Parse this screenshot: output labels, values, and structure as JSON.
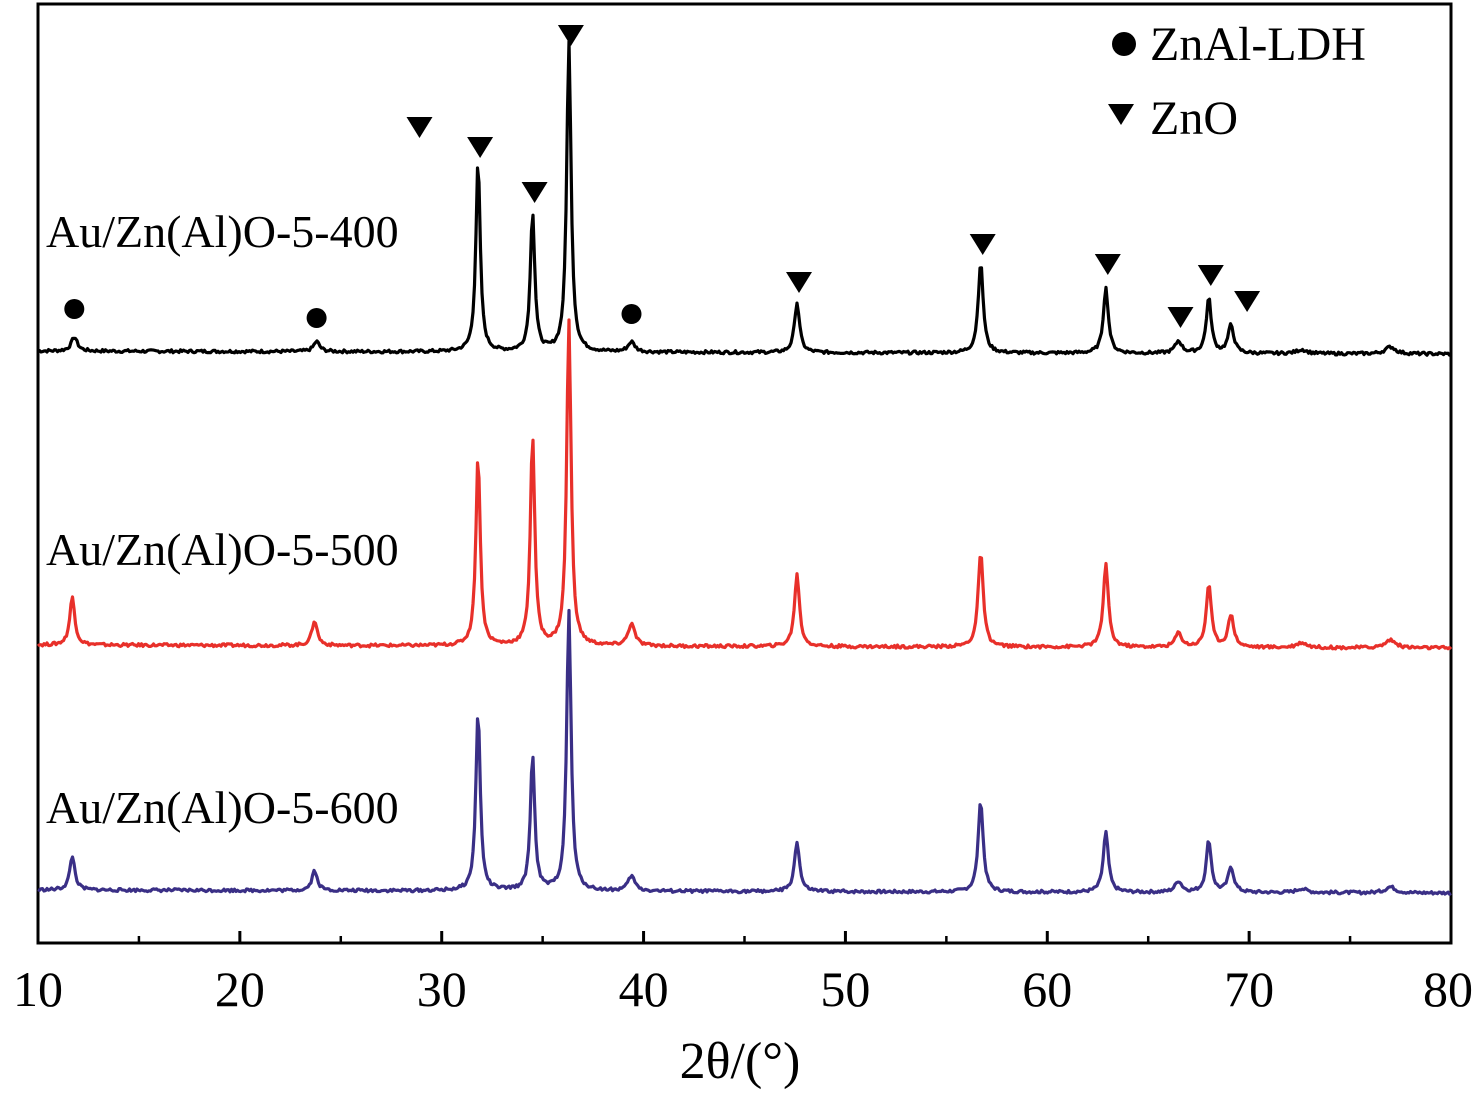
{
  "chart_data": {
    "type": "line",
    "title": "",
    "xlabel": "2θ/(°)",
    "ylabel": "",
    "xlim": [
      10,
      80
    ],
    "xticks": [
      10,
      20,
      30,
      40,
      50,
      60,
      70,
      80
    ],
    "grid": false,
    "legend": {
      "position": "top-right",
      "entries": [
        {
          "symbol": "circle",
          "label": "ZnAl-LDH"
        },
        {
          "symbol": "triangle-down",
          "label": "ZnO"
        }
      ]
    },
    "series": [
      {
        "name": "Au/Zn(Al)O-5-400",
        "color": "#000000",
        "peaks": [
          {
            "x": 11.8,
            "h": 14,
            "w": 0.18
          },
          {
            "x": 23.8,
            "h": 10,
            "w": 0.18
          },
          {
            "x": 31.8,
            "h": 190,
            "w": 0.13
          },
          {
            "x": 34.5,
            "h": 140,
            "w": 0.13
          },
          {
            "x": 36.3,
            "h": 310,
            "w": 0.13
          },
          {
            "x": 39.4,
            "h": 10,
            "w": 0.2
          },
          {
            "x": 47.6,
            "h": 50,
            "w": 0.15
          },
          {
            "x": 56.7,
            "h": 90,
            "w": 0.15
          },
          {
            "x": 62.9,
            "h": 65,
            "w": 0.15
          },
          {
            "x": 66.5,
            "h": 12,
            "w": 0.2
          },
          {
            "x": 68.0,
            "h": 55,
            "w": 0.15
          },
          {
            "x": 69.1,
            "h": 28,
            "w": 0.17
          },
          {
            "x": 72.6,
            "h": 4,
            "w": 0.3
          },
          {
            "x": 77.0,
            "h": 7,
            "w": 0.3
          }
        ]
      },
      {
        "name": "Au/Zn(Al)O-5-500",
        "color": "#e8302a",
        "peaks": [
          {
            "x": 11.7,
            "h": 48,
            "w": 0.15
          },
          {
            "x": 23.7,
            "h": 25,
            "w": 0.16
          },
          {
            "x": 31.8,
            "h": 190,
            "w": 0.13
          },
          {
            "x": 34.5,
            "h": 210,
            "w": 0.13
          },
          {
            "x": 36.3,
            "h": 325,
            "w": 0.13
          },
          {
            "x": 39.4,
            "h": 22,
            "w": 0.2
          },
          {
            "x": 47.6,
            "h": 72,
            "w": 0.15
          },
          {
            "x": 56.7,
            "h": 95,
            "w": 0.15
          },
          {
            "x": 62.9,
            "h": 83,
            "w": 0.15
          },
          {
            "x": 66.5,
            "h": 14,
            "w": 0.2
          },
          {
            "x": 68.0,
            "h": 63,
            "w": 0.15
          },
          {
            "x": 69.1,
            "h": 32,
            "w": 0.17
          },
          {
            "x": 72.6,
            "h": 5,
            "w": 0.3
          },
          {
            "x": 77.0,
            "h": 8,
            "w": 0.3
          }
        ]
      },
      {
        "name": "Au/Zn(Al)O-5-600",
        "color": "#3a2f86",
        "peaks": [
          {
            "x": 11.7,
            "h": 34,
            "w": 0.15
          },
          {
            "x": 23.7,
            "h": 20,
            "w": 0.16
          },
          {
            "x": 31.8,
            "h": 180,
            "w": 0.13
          },
          {
            "x": 34.5,
            "h": 135,
            "w": 0.13
          },
          {
            "x": 36.3,
            "h": 280,
            "w": 0.13
          },
          {
            "x": 39.4,
            "h": 15,
            "w": 0.2
          },
          {
            "x": 47.6,
            "h": 50,
            "w": 0.15
          },
          {
            "x": 56.7,
            "h": 90,
            "w": 0.15
          },
          {
            "x": 62.9,
            "h": 60,
            "w": 0.15
          },
          {
            "x": 66.5,
            "h": 11,
            "w": 0.2
          },
          {
            "x": 68.0,
            "h": 52,
            "w": 0.15
          },
          {
            "x": 69.1,
            "h": 25,
            "w": 0.17
          },
          {
            "x": 72.6,
            "h": 4,
            "w": 0.3
          },
          {
            "x": 77.0,
            "h": 6,
            "w": 0.3
          }
        ]
      }
    ],
    "markers": [
      {
        "symbol": "circle",
        "x": 11.8
      },
      {
        "symbol": "circle",
        "x": 23.8
      },
      {
        "symbol": "circle",
        "x": 39.4
      },
      {
        "symbol": "triangle-down",
        "x": 28.9
      },
      {
        "symbol": "triangle-down",
        "x": 31.9
      },
      {
        "symbol": "triangle-down",
        "x": 34.6
      },
      {
        "symbol": "triangle-down",
        "x": 36.4
      },
      {
        "symbol": "triangle-down",
        "x": 47.7
      },
      {
        "symbol": "triangle-down",
        "x": 56.8
      },
      {
        "symbol": "triangle-down",
        "x": 63.0
      },
      {
        "symbol": "triangle-down",
        "x": 66.6
      },
      {
        "symbol": "triangle-down",
        "x": 68.1
      },
      {
        "symbol": "triangle-down",
        "x": 69.9
      }
    ]
  }
}
